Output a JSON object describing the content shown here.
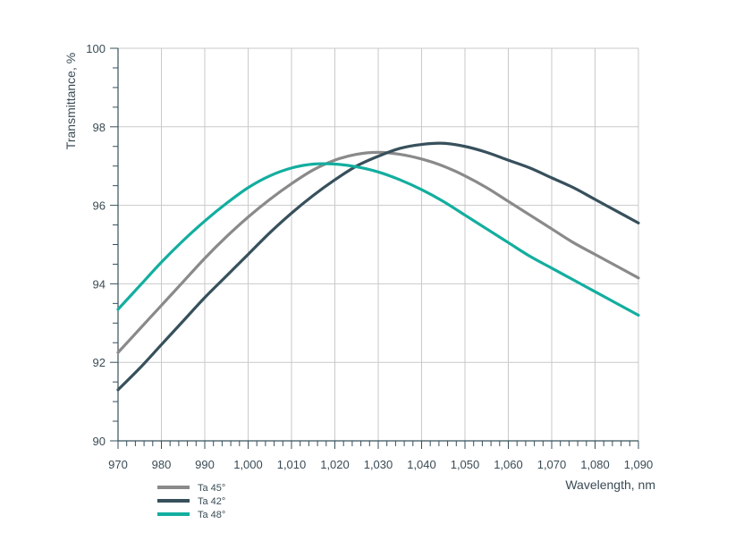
{
  "chart_data": {
    "type": "line",
    "title": "",
    "xlabel": "Wavelength, nm",
    "ylabel": "Transmittance, %",
    "xlim": [
      970,
      1090
    ],
    "ylim": [
      90,
      100
    ],
    "x_ticks": [
      970,
      980,
      990,
      1000,
      1010,
      1020,
      1030,
      1040,
      1050,
      1060,
      1070,
      1080,
      1090
    ],
    "x_tick_labels": [
      "970",
      "980",
      "990",
      "1,000",
      "1,010",
      "1,020",
      "1,030",
      "1,040",
      "1,050",
      "1,060",
      "1,070",
      "1,080",
      "1,090"
    ],
    "y_ticks": [
      90,
      92,
      94,
      96,
      98,
      100
    ],
    "y_tick_labels": [
      "90",
      "92",
      "94",
      "96",
      "98",
      "100"
    ],
    "x_minor_step": 2,
    "y_minor_step": 0.5,
    "grid": true,
    "legend_position": "bottom-left, below plot",
    "series": [
      {
        "name": "Ta 45°",
        "color": "#8a8a8a",
        "x": [
          970,
          975,
          980,
          985,
          990,
          995,
          1000,
          1005,
          1010,
          1015,
          1020,
          1025,
          1030,
          1035,
          1040,
          1045,
          1050,
          1055,
          1060,
          1065,
          1070,
          1075,
          1080,
          1085,
          1090
        ],
        "y": [
          92.25,
          92.85,
          93.45,
          94.05,
          94.65,
          95.2,
          95.7,
          96.15,
          96.55,
          96.9,
          97.15,
          97.3,
          97.35,
          97.3,
          97.18,
          97.0,
          96.75,
          96.45,
          96.1,
          95.75,
          95.4,
          95.05,
          94.75,
          94.45,
          94.15
        ]
      },
      {
        "name": "Ta 42°",
        "color": "#37505c",
        "x": [
          970,
          975,
          980,
          985,
          990,
          995,
          1000,
          1005,
          1010,
          1015,
          1020,
          1025,
          1030,
          1035,
          1040,
          1045,
          1050,
          1055,
          1060,
          1065,
          1070,
          1075,
          1080,
          1085,
          1090
        ],
        "y": [
          91.3,
          91.85,
          92.45,
          93.05,
          93.65,
          94.2,
          94.75,
          95.3,
          95.8,
          96.25,
          96.65,
          97.0,
          97.25,
          97.45,
          97.55,
          97.58,
          97.5,
          97.35,
          97.15,
          96.95,
          96.7,
          96.45,
          96.15,
          95.85,
          95.55
        ]
      },
      {
        "name": "Ta 48°",
        "color": "#13ae9f",
        "x": [
          970,
          975,
          980,
          985,
          990,
          995,
          1000,
          1005,
          1010,
          1015,
          1020,
          1025,
          1030,
          1035,
          1040,
          1045,
          1050,
          1055,
          1060,
          1065,
          1070,
          1075,
          1080,
          1085,
          1090
        ],
        "y": [
          93.35,
          93.95,
          94.55,
          95.1,
          95.6,
          96.05,
          96.45,
          96.75,
          96.95,
          97.05,
          97.05,
          96.98,
          96.85,
          96.65,
          96.4,
          96.1,
          95.75,
          95.4,
          95.05,
          94.7,
          94.4,
          94.1,
          93.8,
          93.5,
          93.2
        ]
      }
    ]
  }
}
